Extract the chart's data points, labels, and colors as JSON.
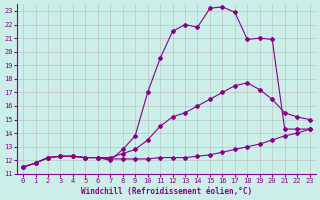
{
  "xlabel": "Windchill (Refroidissement éolien,°C)",
  "bg_color": "#cceee8",
  "grid_color": "#aaaaaa",
  "line_color": "#880088",
  "xlim": [
    -0.5,
    23.5
  ],
  "ylim": [
    11,
    23.5
  ],
  "xticks": [
    0,
    1,
    2,
    3,
    4,
    5,
    6,
    7,
    8,
    9,
    10,
    11,
    12,
    13,
    14,
    15,
    16,
    17,
    18,
    19,
    20,
    21,
    22,
    23
  ],
  "yticks": [
    11,
    12,
    13,
    14,
    15,
    16,
    17,
    18,
    19,
    20,
    21,
    22,
    23
  ],
  "line1_x": [
    0,
    1,
    2,
    3,
    4,
    5,
    6,
    7,
    8,
    9,
    10,
    11,
    12,
    13,
    14,
    15,
    16,
    17,
    18,
    19,
    20,
    21,
    22,
    23
  ],
  "line1_y": [
    11.5,
    11.8,
    12.2,
    12.3,
    12.3,
    12.2,
    12.2,
    12.1,
    12.1,
    12.1,
    12.1,
    12.2,
    12.2,
    12.2,
    12.3,
    12.4,
    12.6,
    12.8,
    13.0,
    13.2,
    13.5,
    13.8,
    14.0,
    14.3
  ],
  "line2_x": [
    0,
    1,
    2,
    3,
    4,
    5,
    6,
    7,
    8,
    9,
    10,
    11,
    12,
    13,
    14,
    15,
    16,
    17,
    18,
    19,
    20,
    21,
    22,
    23
  ],
  "line2_y": [
    11.5,
    11.8,
    12.2,
    12.3,
    12.3,
    12.2,
    12.2,
    12.2,
    12.5,
    12.8,
    13.5,
    14.5,
    15.2,
    15.5,
    16.0,
    16.5,
    17.0,
    17.5,
    17.7,
    17.2,
    16.5,
    15.5,
    15.2,
    15.0
  ],
  "line3_x": [
    0,
    1,
    2,
    3,
    4,
    5,
    6,
    7,
    8,
    9,
    10,
    11,
    12,
    13,
    14,
    15,
    16,
    17,
    18,
    19,
    20,
    21,
    22,
    23
  ],
  "line3_y": [
    11.5,
    11.8,
    12.2,
    12.3,
    12.3,
    12.2,
    12.2,
    12.0,
    12.8,
    13.8,
    17.0,
    19.5,
    21.5,
    22.0,
    21.8,
    23.2,
    23.3,
    22.9,
    20.9,
    21.0,
    20.9,
    14.3,
    14.3,
    14.3
  ]
}
